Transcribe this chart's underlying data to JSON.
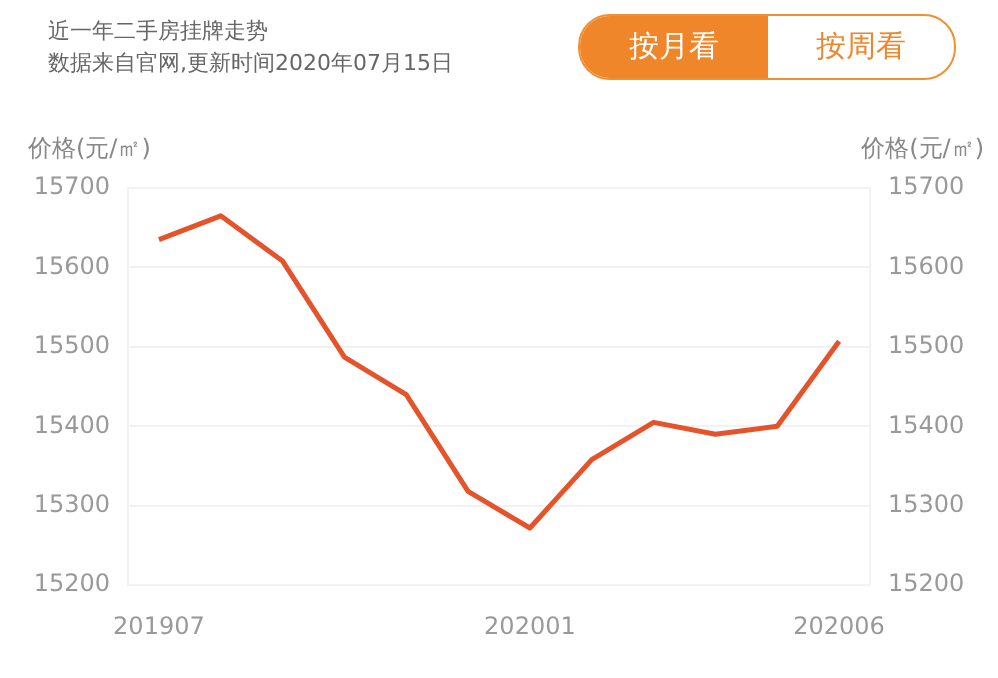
{
  "chart_data": {
    "type": "line",
    "title": "近一年二手房挂牌走势",
    "subtitle": "数据来自官网,更新时间2020年07月15日",
    "categories": [
      "201907",
      null,
      null,
      null,
      null,
      null,
      "202001",
      null,
      null,
      null,
      null,
      "202006"
    ],
    "series": [
      {
        "color": "#e4532a",
        "values": [
          15635,
          15665,
          15608,
          15487,
          15440,
          15318,
          15272,
          15358,
          15405,
          15390,
          15400,
          15507
        ]
      }
    ],
    "ylabel": "价格(元/㎡)",
    "y2label": "价格(元/㎡)",
    "ylim": [
      15200,
      15700
    ],
    "yticks": [
      15200,
      15300,
      15400,
      15500,
      15600,
      15700
    ],
    "y2lim": [
      15200,
      15700
    ],
    "y2ticks": [
      15200,
      15300,
      15400,
      15500,
      15600,
      15700
    ],
    "annotations": [
      "按月看",
      "按周看"
    ],
    "grid": "y",
    "legend": false,
    "marker": "none",
    "line_style": "solid"
  }
}
